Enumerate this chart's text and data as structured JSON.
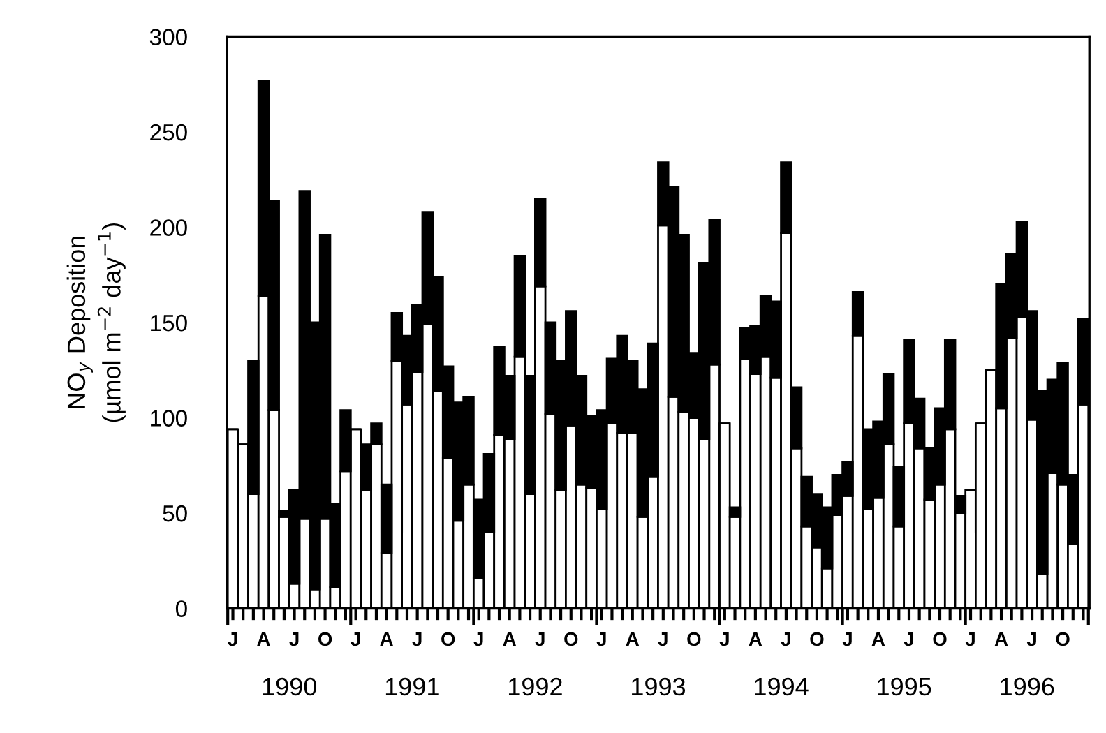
{
  "chart_data": {
    "type": "bar",
    "stacked": true,
    "ylabel": "NO$_{y}$ Deposition\n(µmol m$^{−2}$ day$^{−1}$)",
    "categories": [
      "J",
      null,
      null,
      "A",
      null,
      null,
      "J",
      null,
      null,
      "O",
      null,
      null,
      "J",
      null,
      null,
      "A",
      null,
      null,
      "J",
      null,
      null,
      "O",
      null,
      null,
      "J",
      null,
      null,
      "A",
      null,
      null,
      "J",
      null,
      null,
      "O",
      null,
      null,
      "J",
      null,
      null,
      "A",
      null,
      null,
      "J",
      null,
      null,
      "O",
      null,
      null,
      "J",
      null,
      null,
      "A",
      null,
      null,
      "J",
      null,
      null,
      "O",
      null,
      null,
      "J",
      null,
      null,
      "A",
      null,
      null,
      "J",
      null,
      null,
      "O",
      null,
      null,
      "J",
      null,
      null,
      "A",
      null,
      null,
      "J",
      null,
      null,
      "O",
      null,
      null
    ],
    "series": [
      {
        "color": "#ffffff",
        "values": [
          94,
          86,
          60,
          164,
          104,
          48,
          13,
          47,
          10,
          47,
          11,
          72,
          94,
          62,
          86,
          29,
          130,
          107,
          124,
          149,
          114,
          79,
          46,
          65,
          16,
          40,
          91,
          89,
          132,
          60,
          169,
          102,
          62,
          96,
          65,
          63,
          52,
          97,
          92,
          92,
          48,
          69,
          201,
          111,
          103,
          100,
          89,
          128,
          97,
          48,
          131,
          123,
          132,
          121,
          197,
          84,
          43,
          32,
          21,
          49,
          59,
          143,
          52,
          58,
          86,
          43,
          97,
          84,
          57,
          65,
          94,
          50,
          62,
          97,
          125,
          105,
          142,
          153,
          99,
          18,
          71,
          65,
          34,
          107
        ]
      },
      {
        "color": "#000000",
        "values": [
          0,
          0,
          70,
          113,
          110,
          3,
          49,
          172,
          140,
          149,
          44,
          32,
          0,
          24,
          11,
          36,
          25,
          36,
          35,
          59,
          60,
          48,
          62,
          46,
          41,
          41,
          46,
          33,
          53,
          62,
          46,
          48,
          68,
          60,
          57,
          38,
          52,
          34,
          51,
          38,
          67,
          70,
          33,
          110,
          93,
          34,
          92,
          76,
          0,
          5,
          16,
          25,
          32,
          40,
          37,
          32,
          26,
          28,
          32,
          21,
          18,
          23,
          42,
          40,
          37,
          31,
          44,
          26,
          27,
          40,
          47,
          9,
          0,
          0,
          0,
          65,
          44,
          50,
          57,
          96,
          49,
          64,
          36,
          45
        ]
      }
    ],
    "ylim": [
      0,
      300
    ],
    "yticks": [
      0,
      50,
      100,
      150,
      200,
      250,
      300
    ],
    "annotations": [
      "1990",
      "1991",
      "1992",
      "1993",
      "1994",
      "1995",
      "1996"
    ]
  }
}
